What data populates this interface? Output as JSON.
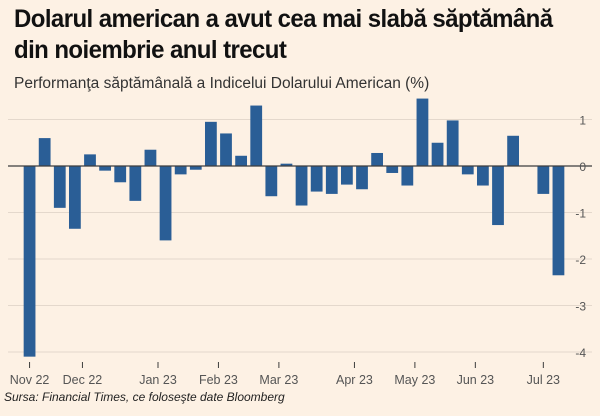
{
  "title": "Dolarul american a avut cea mai slabă săptămână din noiembrie anul trecut",
  "subtitle": "Performanţa săptămânală a Indicelui Dolarului American (%)",
  "source": "Sursa: Financial Times, ce foloseşte date Bloomberg",
  "colors": {
    "bar": "#2a5e96",
    "background": "#fdf1e4",
    "grid": "#e4d8cc",
    "zero": "#3d3d3d",
    "tick": "#555555"
  },
  "chart_data": {
    "type": "bar",
    "title": "Dolarul american a avut cea mai slabă săptămână din noiembrie anul trecut",
    "ylabel": "",
    "xlabel": "",
    "ylim": [
      -4.2,
      1.3
    ],
    "yticks": [
      1,
      0,
      -1,
      -2,
      -3,
      -4
    ],
    "grid": true,
    "axis_position": "right",
    "xtick_labels": [
      {
        "label": "Nov 22",
        "index": 0
      },
      {
        "label": "Dec 22",
        "index": 3.5
      },
      {
        "label": "Jan 23",
        "index": 8.5
      },
      {
        "label": "Feb 23",
        "index": 12.5
      },
      {
        "label": "Mar 23",
        "index": 16.5
      },
      {
        "label": "Apr 23",
        "index": 21.5
      },
      {
        "label": "May 23",
        "index": 25.5
      },
      {
        "label": "Jun 23",
        "index": 29.5
      },
      {
        "label": "Jul 23",
        "index": 34
      }
    ],
    "values": [
      -4.1,
      0.6,
      -0.9,
      -1.35,
      0.25,
      -0.1,
      -0.35,
      -0.75,
      0.35,
      -1.6,
      -0.18,
      -0.08,
      0.95,
      0.7,
      0.22,
      1.3,
      -0.65,
      0.05,
      -0.85,
      -0.55,
      -0.6,
      -0.4,
      -0.5,
      0.28,
      -0.15,
      -0.42,
      1.45,
      0.5,
      0.98,
      -0.18,
      -0.42,
      -1.27,
      0.65,
      0.01,
      -0.6,
      -2.35
    ]
  }
}
